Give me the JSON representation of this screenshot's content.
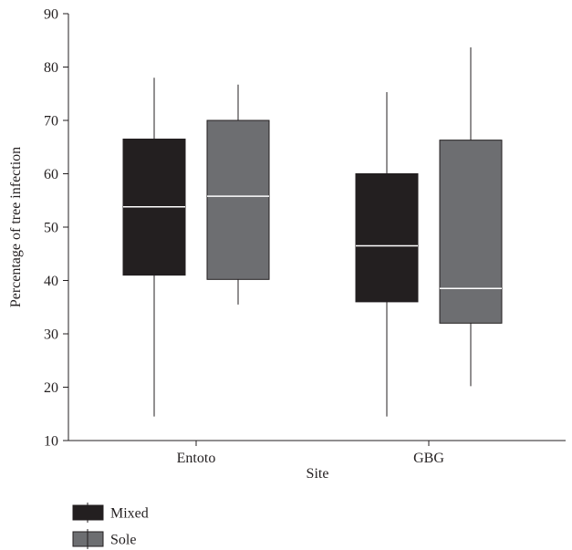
{
  "chart_data": {
    "type": "boxplot",
    "title": "",
    "xlabel": "Site",
    "ylabel": "Percentage of tree infection",
    "ylim": [
      10,
      90
    ],
    "yticks": [
      10,
      20,
      30,
      40,
      50,
      60,
      70,
      80,
      90
    ],
    "categories": [
      "Entoto",
      "GBG"
    ],
    "legend_position": "bottom-left",
    "series": [
      {
        "name": "Mixed",
        "color": "#231f20",
        "median_color": "#ffffff",
        "boxes": [
          {
            "min": 14.5,
            "q1": 41,
            "median": 53.8,
            "q3": 66.5,
            "max": 78
          },
          {
            "min": 14.5,
            "q1": 36,
            "median": 46.5,
            "q3": 60,
            "max": 75.3
          }
        ]
      },
      {
        "name": "Sole",
        "color": "#6d6e71",
        "median_color": "#ffffff",
        "boxes": [
          {
            "min": 35.5,
            "q1": 40.2,
            "median": 55.8,
            "q3": 70,
            "max": 76.7
          },
          {
            "min": 20.2,
            "q1": 32,
            "median": 38.5,
            "q3": 66.3,
            "max": 83.7
          }
        ]
      }
    ]
  }
}
